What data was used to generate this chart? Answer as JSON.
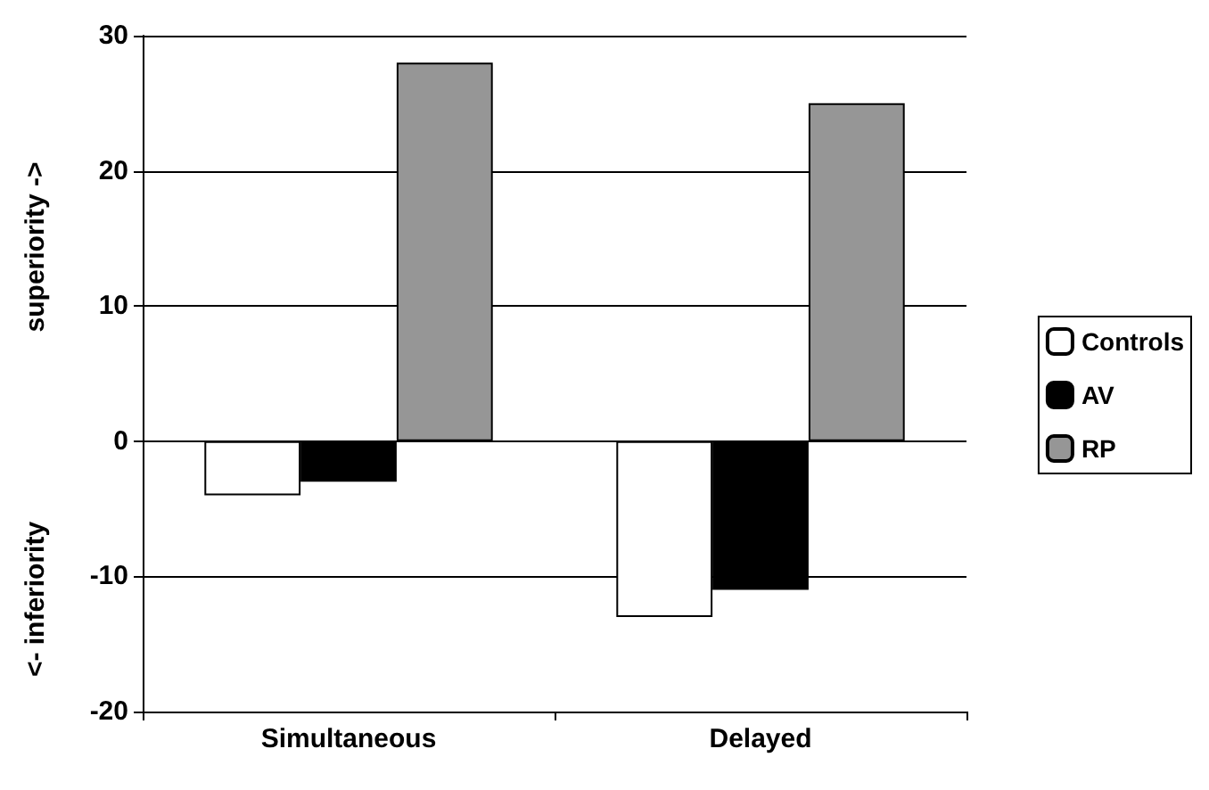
{
  "chart_data": {
    "type": "bar",
    "categories": [
      "Simultaneous",
      "Delayed"
    ],
    "series": [
      {
        "name": "Controls",
        "color": "#ffffff",
        "values": [
          -4,
          -13
        ]
      },
      {
        "name": "AV",
        "color": "#000000",
        "values": [
          -3,
          -11
        ]
      },
      {
        "name": "RP",
        "color": "#969696",
        "values": [
          28,
          25
        ]
      }
    ],
    "ylim": [
      -20,
      30
    ],
    "yticks": [
      -20,
      -10,
      0,
      10,
      20,
      30
    ],
    "grid": "y",
    "legend": "right",
    "annotations": [
      "superiority ->",
      "<- inferiority"
    ]
  }
}
